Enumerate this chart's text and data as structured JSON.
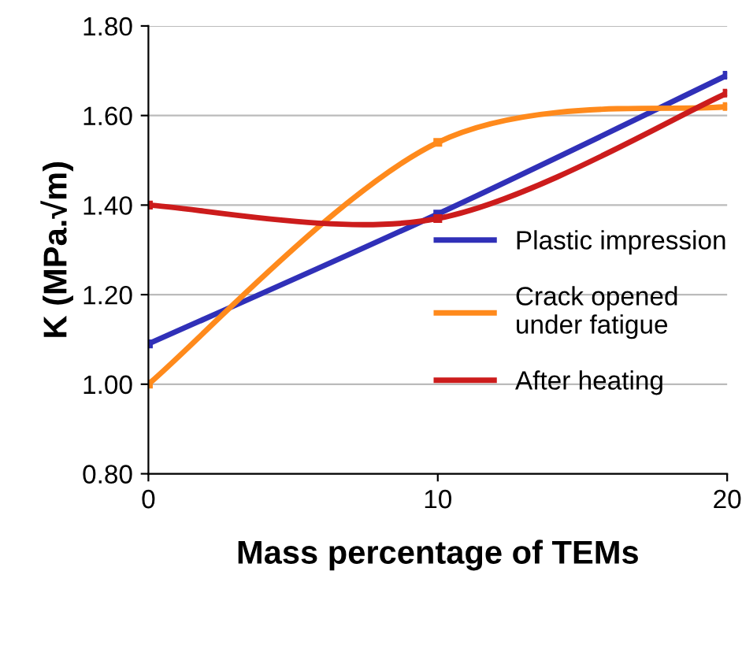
{
  "chart_data": {
    "type": "line",
    "xlabel": "Mass percentage of TEMs",
    "ylabel": "K (MPa.√m)",
    "x": [
      0,
      10,
      20
    ],
    "series": [
      {
        "name": "Plastic impression",
        "color": "#3030b8",
        "values": [
          1.09,
          1.38,
          1.69
        ]
      },
      {
        "name": "Crack opened\nunder fatigue",
        "color": "#ff8a1c",
        "values": [
          1.0,
          1.54,
          1.62
        ]
      },
      {
        "name": "After heating",
        "color": "#cc1c1c",
        "values": [
          1.4,
          1.37,
          1.65
        ]
      }
    ],
    "xlim": [
      0,
      20
    ],
    "xticks": [
      0,
      10,
      20
    ],
    "ylim": [
      0.8,
      1.8
    ],
    "yticks": [
      {
        "value": 0.8,
        "label": "0.80"
      },
      {
        "value": 1.0,
        "label": "1.00"
      },
      {
        "value": 1.2,
        "label": "1.20"
      },
      {
        "value": 1.4,
        "label": "1.40"
      },
      {
        "value": 1.6,
        "label": "1.60"
      },
      {
        "value": 1.8,
        "label": "1.80"
      }
    ],
    "grid": "y",
    "legend": "right",
    "marker": "square",
    "line_style": "solid"
  }
}
